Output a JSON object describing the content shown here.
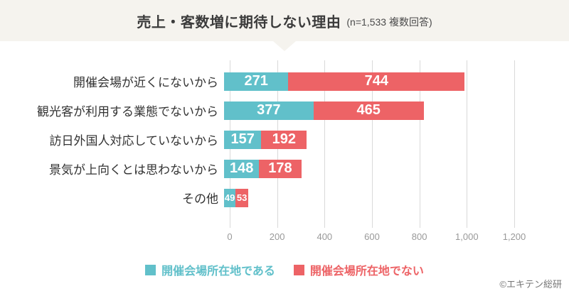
{
  "header": {
    "title": "売上・客数増に期待しない理由",
    "subtitle": "(n=1,533 複数回答)"
  },
  "chart_data": {
    "type": "bar",
    "orientation": "horizontal",
    "stacked": true,
    "title": "売上・客数増に期待しない理由 (n=1,533 複数回答)",
    "categories": [
      "開催会場が近くにないから",
      "観光客が利用する業態でないから",
      "訪日外国人対応していないから",
      "景気が上向くとは思わないから",
      "その他"
    ],
    "series": [
      {
        "name": "開催会場所在地である",
        "color": "#61c0ca",
        "values": [
          271,
          377,
          157,
          148,
          49
        ]
      },
      {
        "name": "開催会場所在地でない",
        "color": "#ed6366",
        "values": [
          744,
          465,
          192,
          178,
          53
        ]
      }
    ],
    "xlim": [
      0,
      1200
    ],
    "xticks": [
      {
        "value": 0,
        "label": "0"
      },
      {
        "value": 200,
        "label": "200"
      },
      {
        "value": 400,
        "label": "400"
      },
      {
        "value": 600,
        "label": "600"
      },
      {
        "value": 800,
        "label": "800"
      },
      {
        "value": 1000,
        "label": "1,000"
      },
      {
        "value": 1200,
        "label": "1,200"
      }
    ],
    "grid": true,
    "legend_position": "bottom",
    "colors": {
      "grid": "#d9d9d9",
      "header_bg": "#f5f3ee",
      "value_text": "#ffffff"
    }
  },
  "footer": {
    "credit": "©エキテン総研"
  }
}
